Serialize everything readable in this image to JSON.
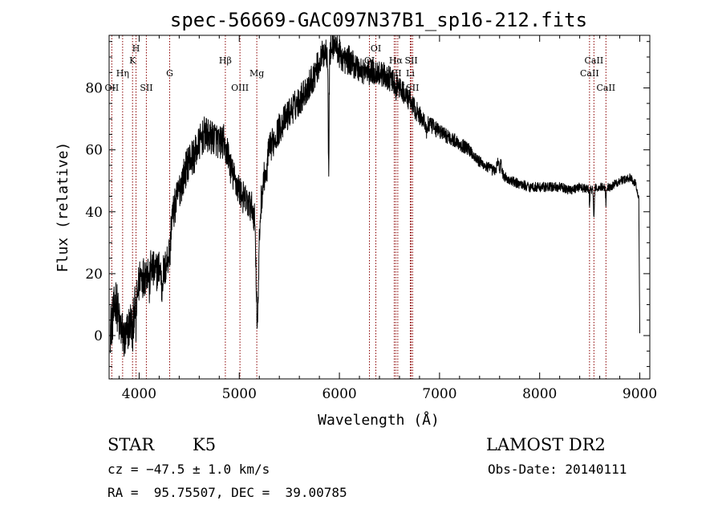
{
  "chart_data": {
    "type": "line",
    "title": "spec-56669-GAC097N37B1_sp16-212.fits",
    "xlabel": "Wavelength (Å)",
    "ylabel": "Flux (relative)",
    "xlim": [
      3700,
      9100
    ],
    "ylim": [
      -14,
      97
    ],
    "xticks": [
      4000,
      5000,
      6000,
      7000,
      8000,
      9000
    ],
    "yticks": [
      0,
      20,
      40,
      60,
      80
    ],
    "line_color": "#000000",
    "marker_color": "#8b0000",
    "spectrum_knots": [
      [
        3710,
        2
      ],
      [
        3740,
        6
      ],
      [
        3770,
        12
      ],
      [
        3800,
        4
      ],
      [
        3830,
        1
      ],
      [
        3860,
        -2
      ],
      [
        3890,
        2
      ],
      [
        3920,
        5
      ],
      [
        3950,
        8
      ],
      [
        3980,
        12
      ],
      [
        4010,
        20
      ],
      [
        4040,
        19
      ],
      [
        4080,
        21
      ],
      [
        4120,
        22
      ],
      [
        4160,
        20
      ],
      [
        4200,
        22
      ],
      [
        4250,
        20
      ],
      [
        4290,
        26
      ],
      [
        4320,
        37
      ],
      [
        4360,
        42
      ],
      [
        4400,
        47
      ],
      [
        4450,
        52
      ],
      [
        4500,
        57
      ],
      [
        4550,
        58
      ],
      [
        4600,
        62
      ],
      [
        4650,
        65
      ],
      [
        4700,
        64
      ],
      [
        4760,
        64
      ],
      [
        4800,
        62
      ],
      [
        4850,
        63
      ],
      [
        4880,
        60
      ],
      [
        4920,
        53
      ],
      [
        4960,
        50
      ],
      [
        5000,
        47
      ],
      [
        5030,
        45
      ],
      [
        5080,
        43
      ],
      [
        5130,
        41
      ],
      [
        5160,
        38
      ],
      [
        5190,
        28
      ],
      [
        5220,
        44
      ],
      [
        5260,
        54
      ],
      [
        5300,
        60
      ],
      [
        5400,
        67
      ],
      [
        5500,
        72
      ],
      [
        5600,
        76
      ],
      [
        5700,
        81
      ],
      [
        5800,
        88
      ],
      [
        5850,
        92
      ],
      [
        5900,
        91
      ],
      [
        5950,
        95
      ],
      [
        6000,
        91
      ],
      [
        6050,
        89
      ],
      [
        6100,
        89
      ],
      [
        6200,
        86
      ],
      [
        6300,
        85
      ],
      [
        6400,
        85
      ],
      [
        6500,
        83
      ],
      [
        6600,
        80
      ],
      [
        6700,
        76
      ],
      [
        6800,
        71
      ],
      [
        6900,
        68
      ],
      [
        7000,
        66
      ],
      [
        7100,
        64
      ],
      [
        7200,
        62
      ],
      [
        7300,
        60
      ],
      [
        7400,
        56
      ],
      [
        7500,
        54
      ],
      [
        7560,
        53
      ],
      [
        7600,
        59
      ],
      [
        7630,
        52
      ],
      [
        7700,
        50
      ],
      [
        7800,
        49
      ],
      [
        7900,
        48
      ],
      [
        8000,
        48
      ],
      [
        8100,
        48
      ],
      [
        8200,
        48
      ],
      [
        8300,
        47
      ],
      [
        8400,
        48
      ],
      [
        8500,
        47
      ],
      [
        8600,
        48
      ],
      [
        8700,
        48
      ],
      [
        8800,
        50
      ],
      [
        8900,
        51
      ],
      [
        8960,
        49
      ],
      [
        8990,
        44
      ],
      [
        9000,
        0
      ]
    ],
    "absorption_features": [
      [
        3934,
        8,
        5
      ],
      [
        3969,
        8,
        4
      ],
      [
        4102,
        6,
        5
      ],
      [
        4226,
        6,
        5
      ],
      [
        4308,
        7,
        6
      ],
      [
        4861,
        6,
        5
      ],
      [
        5175,
        14,
        10
      ],
      [
        5183,
        14,
        10
      ],
      [
        5270,
        6,
        6
      ],
      [
        5893,
        38,
        4
      ],
      [
        6563,
        4,
        4
      ],
      [
        6870,
        3,
        8
      ],
      [
        7600,
        5,
        6
      ],
      [
        8498,
        5,
        3
      ],
      [
        8542,
        10,
        4
      ],
      [
        8662,
        5,
        4
      ]
    ],
    "noise_amplitude": [
      [
        3700,
        8
      ],
      [
        4300,
        6
      ],
      [
        4400,
        6
      ],
      [
        5300,
        5
      ],
      [
        5900,
        5
      ],
      [
        6500,
        4
      ],
      [
        7000,
        2.5
      ],
      [
        7600,
        1.7
      ],
      [
        9000,
        1.3
      ]
    ],
    "lines": [
      {
        "name": "OII",
        "wavelength": 3727,
        "label_row": 3
      },
      {
        "name": "Hη",
        "wavelength": 3835,
        "label_row": 2
      },
      {
        "name": "K",
        "wavelength": 3934,
        "label_row": 1
      },
      {
        "name": "H",
        "wavelength": 3969,
        "label_row": 0
      },
      {
        "name": "SII",
        "wavelength": 4072,
        "label_row": 3
      },
      {
        "name": "G",
        "wavelength": 4305,
        "label_row": 2
      },
      {
        "name": "Hβ",
        "wavelength": 4861,
        "label_row": 1
      },
      {
        "name": "OIII",
        "wavelength": 5007,
        "label_row": 3
      },
      {
        "name": "Mg",
        "wavelength": 5175,
        "label_row": 2
      },
      {
        "name": "OI",
        "wavelength": 6300,
        "label_row": 1
      },
      {
        "name": "OI",
        "wavelength": 6364,
        "label_row": 0
      },
      {
        "name": "NII",
        "wavelength": 6548,
        "label_row": 2
      },
      {
        "name": "Hα",
        "wavelength": 6563,
        "label_row": 1
      },
      {
        "name": "NII",
        "wavelength": 6583,
        "label_row": 3
      },
      {
        "name": "Li",
        "wavelength": 6708,
        "label_row": 2
      },
      {
        "name": "SII",
        "wavelength": 6717,
        "label_row": 1
      },
      {
        "name": "SII",
        "wavelength": 6731,
        "label_row": 3
      },
      {
        "name": "CaII",
        "wavelength": 8498,
        "label_row": 2
      },
      {
        "name": "CaII",
        "wavelength": 8542,
        "label_row": 1
      },
      {
        "name": "CaII",
        "wavelength": 8662,
        "label_row": 3
      }
    ]
  },
  "info": {
    "class": "STAR",
    "subclass": "K5",
    "survey": "LAMOST DR2",
    "cz": "cz = −47.5 ± 1.0 km/s",
    "obs_date": "Obs-Date: 20140111",
    "coords": "RA =  95.75507, DEC =  39.00785"
  }
}
